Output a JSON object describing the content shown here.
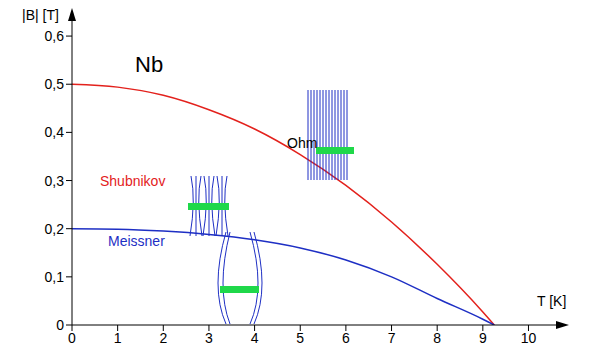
{
  "chart_data": {
    "type": "line",
    "title": "Nb",
    "x_label": "T [K]",
    "y_label": "|B| [T]",
    "x": [
      0,
      1,
      2,
      3,
      4,
      5,
      6,
      7,
      8,
      9,
      9.25
    ],
    "series": [
      {
        "color": "#e3211c",
        "values": [
          0.5,
          0.494,
          0.477,
          0.447,
          0.407,
          0.354,
          0.29,
          0.214,
          0.126,
          0.027,
          0
        ]
      },
      {
        "color": "#1e2fc4",
        "values": [
          0.2,
          0.199,
          0.195,
          0.188,
          0.177,
          0.16,
          0.135,
          0.1,
          0.055,
          0.012,
          0
        ]
      }
    ],
    "xlim": [
      0,
      10.8
    ],
    "ylim": [
      0,
      0.65
    ],
    "xticks": [
      0,
      1,
      2,
      3,
      4,
      5,
      6,
      7,
      8,
      9,
      10
    ],
    "yticks": [
      0,
      {
        "value": 0.1,
        "label": "0,1"
      },
      {
        "value": 0.2,
        "label": "0,2"
      },
      {
        "value": 0.3,
        "label": "0,3"
      },
      {
        "value": 0.4,
        "label": "0,4"
      },
      {
        "value": 0.5,
        "label": "0,5"
      },
      {
        "value": 0.6,
        "label": "0,6"
      }
    ],
    "annotations": [
      {
        "text": "Shubnikov",
        "color": "#e3211c"
      },
      {
        "text": "Ohm",
        "color": "#000000"
      },
      {
        "text": "Meissner",
        "color": "#1e2fc4"
      }
    ],
    "grid": false
  }
}
